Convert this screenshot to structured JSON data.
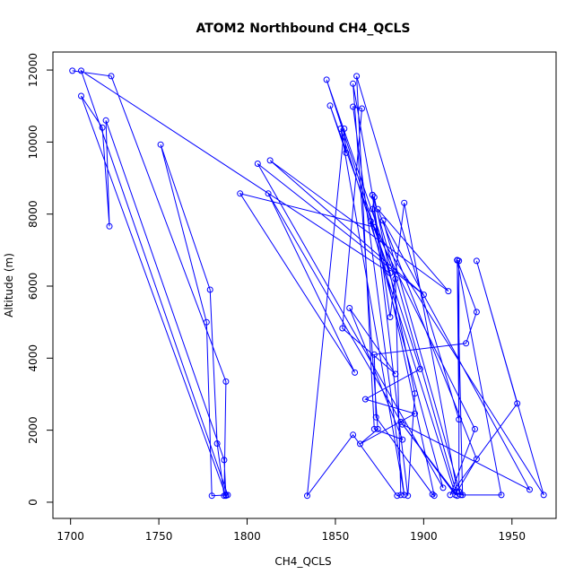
{
  "chart_data": {
    "type": "line",
    "title": "ATOM2 Northbound CH4_QCLS",
    "xlabel": "CH4_QCLS",
    "ylabel": "Altitude (m)",
    "xlim": [
      1690,
      1975
    ],
    "ylim": [
      -450,
      12500
    ],
    "x_ticks": [
      1700,
      1750,
      1800,
      1850,
      1900,
      1950
    ],
    "y_ticks": [
      0,
      2000,
      4000,
      6000,
      8000,
      10000,
      12000
    ],
    "grid": false,
    "legend": "none",
    "marker": "open-circle",
    "line_color": "#0000ff",
    "series": [
      {
        "points": [
          [
            1701,
            11980
          ],
          [
            1723,
            11830
          ],
          [
            1788,
            3350
          ],
          [
            1787,
            180
          ],
          [
            1783,
            1630
          ],
          [
            1779,
            5900
          ],
          [
            1751,
            9930
          ],
          [
            1777,
            5000
          ],
          [
            1780,
            180
          ],
          [
            1788,
            200
          ],
          [
            1787,
            1170
          ],
          [
            1720,
            10600
          ],
          [
            1722,
            7660
          ],
          [
            1718,
            10400
          ],
          [
            1706,
            11280
          ],
          [
            1788,
            180
          ],
          [
            1789,
            200
          ],
          [
            1706,
            11980
          ],
          [
            1881,
            6360
          ],
          [
            1847,
            11010
          ],
          [
            1856,
            9700
          ],
          [
            1855,
            10370
          ],
          [
            1834,
            180
          ],
          [
            1860,
            1870
          ],
          [
            1885,
            180
          ],
          [
            1887,
            200
          ],
          [
            1884,
            6200
          ],
          [
            1845,
            11730
          ],
          [
            1898,
            3700
          ],
          [
            1867,
            2860
          ],
          [
            1895,
            2460
          ],
          [
            1864,
            1620
          ],
          [
            1874,
            2030
          ],
          [
            1860,
            11620
          ],
          [
            1871,
            8530
          ],
          [
            1919,
            180
          ],
          [
            1887,
            2230
          ],
          [
            1918,
            200
          ],
          [
            1853,
            10370
          ],
          [
            1889,
            200
          ],
          [
            1860,
            10980
          ],
          [
            1865,
            10930
          ],
          [
            1854,
            4830
          ],
          [
            1884,
            3560
          ],
          [
            1858,
            5390
          ],
          [
            1888,
            1740
          ],
          [
            1872,
            2030
          ],
          [
            1862,
            11830
          ],
          [
            1920,
            2300
          ],
          [
            1919,
            6720
          ],
          [
            1930,
            5280
          ],
          [
            1924,
            4410
          ],
          [
            1872,
            4100
          ],
          [
            1873,
            2360
          ],
          [
            1905,
            220
          ],
          [
            1906,
            180
          ],
          [
            1871,
            8140
          ],
          [
            1872,
            8470
          ],
          [
            1895,
            3020
          ],
          [
            1891,
            180
          ],
          [
            1871,
            8530
          ],
          [
            1881,
            5140
          ],
          [
            1889,
            8310
          ],
          [
            1919,
            300
          ],
          [
            1930,
            1200
          ],
          [
            1874,
            8140
          ],
          [
            1914,
            5860
          ],
          [
            1813,
            9490
          ],
          [
            1900,
            5760
          ],
          [
            1806,
            9400
          ],
          [
            1911,
            400
          ],
          [
            1870,
            7800
          ],
          [
            1968,
            200
          ],
          [
            1930,
            6700
          ],
          [
            1953,
            2740
          ],
          [
            1915,
            200
          ],
          [
            1929,
            2030
          ],
          [
            1872,
            7640
          ],
          [
            1796,
            8570
          ],
          [
            1861,
            3600
          ],
          [
            1812,
            8570
          ],
          [
            1888,
            2160
          ],
          [
            1960,
            350
          ],
          [
            1877,
            7820
          ],
          [
            1921,
            200
          ],
          [
            1944,
            200
          ],
          [
            1919,
            6720
          ],
          [
            1919,
            6720
          ],
          [
            1920,
            6700
          ],
          [
            1920,
            300
          ],
          [
            1922,
            200
          ],
          [
            1919,
            6720
          ]
        ]
      }
    ]
  }
}
